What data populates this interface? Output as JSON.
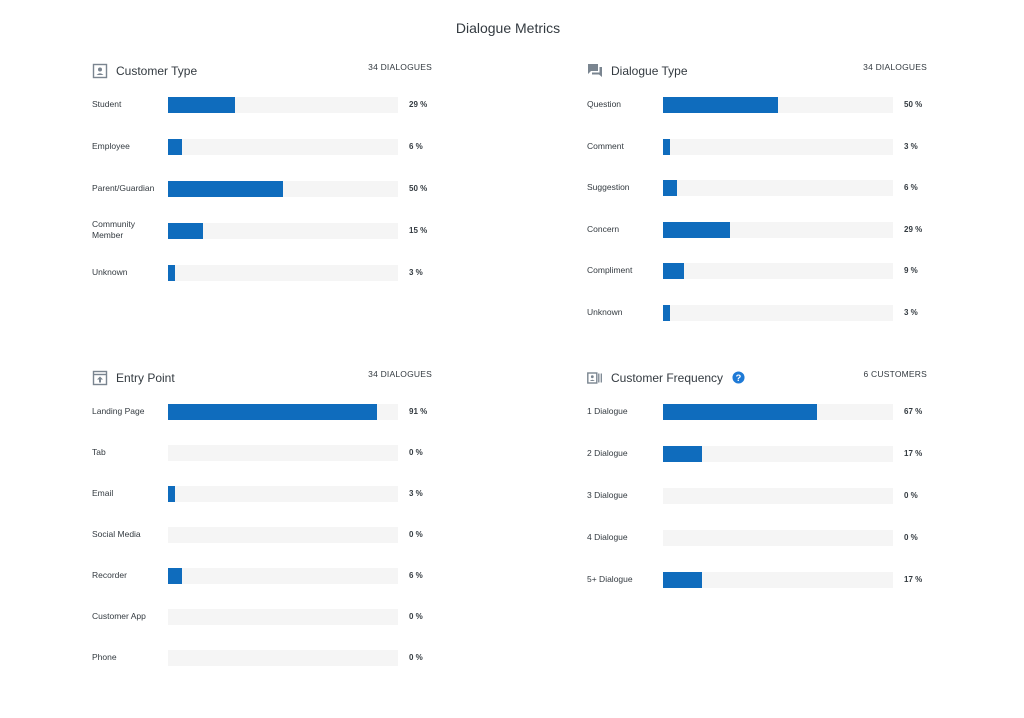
{
  "page_title": "Dialogue Metrics",
  "colors": {
    "bar": "#0f6cbd",
    "track": "#f5f5f5",
    "icon": "#7a8590",
    "help": "#1f7ad6"
  },
  "chart_data": [
    {
      "key": "customer_type",
      "type": "bar",
      "orientation": "horizontal",
      "title": "Customer Type",
      "count_label": "34 DIALOGUES",
      "icon": "person-card-icon",
      "categories": [
        "Student",
        "Employee",
        "Parent/Guardian",
        "Community\nMember",
        "Unknown"
      ],
      "values": [
        29,
        6,
        50,
        15,
        3
      ],
      "value_labels": [
        "29 %",
        "6 %",
        "50 %",
        "15 %",
        "3 %"
      ],
      "xlim": [
        0,
        100
      ]
    },
    {
      "key": "dialogue_type",
      "type": "bar",
      "orientation": "horizontal",
      "title": "Dialogue Type",
      "count_label": "34 DIALOGUES",
      "icon": "chat-bubbles-icon",
      "categories": [
        "Question",
        "Comment",
        "Suggestion",
        "Concern",
        "Compliment",
        "Unknown"
      ],
      "values": [
        50,
        3,
        6,
        29,
        9,
        3
      ],
      "value_labels": [
        "50 %",
        "3 %",
        "6 %",
        "29 %",
        "9 %",
        "3 %"
      ],
      "xlim": [
        0,
        100
      ]
    },
    {
      "key": "entry_point",
      "type": "bar",
      "orientation": "horizontal",
      "title": "Entry Point",
      "count_label": "34 DIALOGUES",
      "icon": "entry-upload-icon",
      "categories": [
        "Landing Page",
        "Tab",
        "Email",
        "Social Media",
        "Recorder",
        "Customer App",
        "Phone"
      ],
      "values": [
        91,
        0,
        3,
        0,
        6,
        0,
        0
      ],
      "value_labels": [
        "91 %",
        "0 %",
        "3 %",
        "0 %",
        "6 %",
        "0 %",
        "0 %"
      ],
      "xlim": [
        0,
        100
      ]
    },
    {
      "key": "customer_frequency",
      "type": "bar",
      "orientation": "horizontal",
      "title": "Customer Frequency",
      "count_label": "6 CUSTOMERS",
      "icon": "id-list-icon",
      "help": true,
      "categories": [
        "1 Dialogue",
        "2 Dialogue",
        "3 Dialogue",
        "4 Dialogue",
        "5+ Dialogue"
      ],
      "values": [
        67,
        17,
        0,
        0,
        17
      ],
      "value_labels": [
        "67 %",
        "17 %",
        "0 %",
        "0 %",
        "17 %"
      ],
      "xlim": [
        0,
        100
      ]
    }
  ]
}
